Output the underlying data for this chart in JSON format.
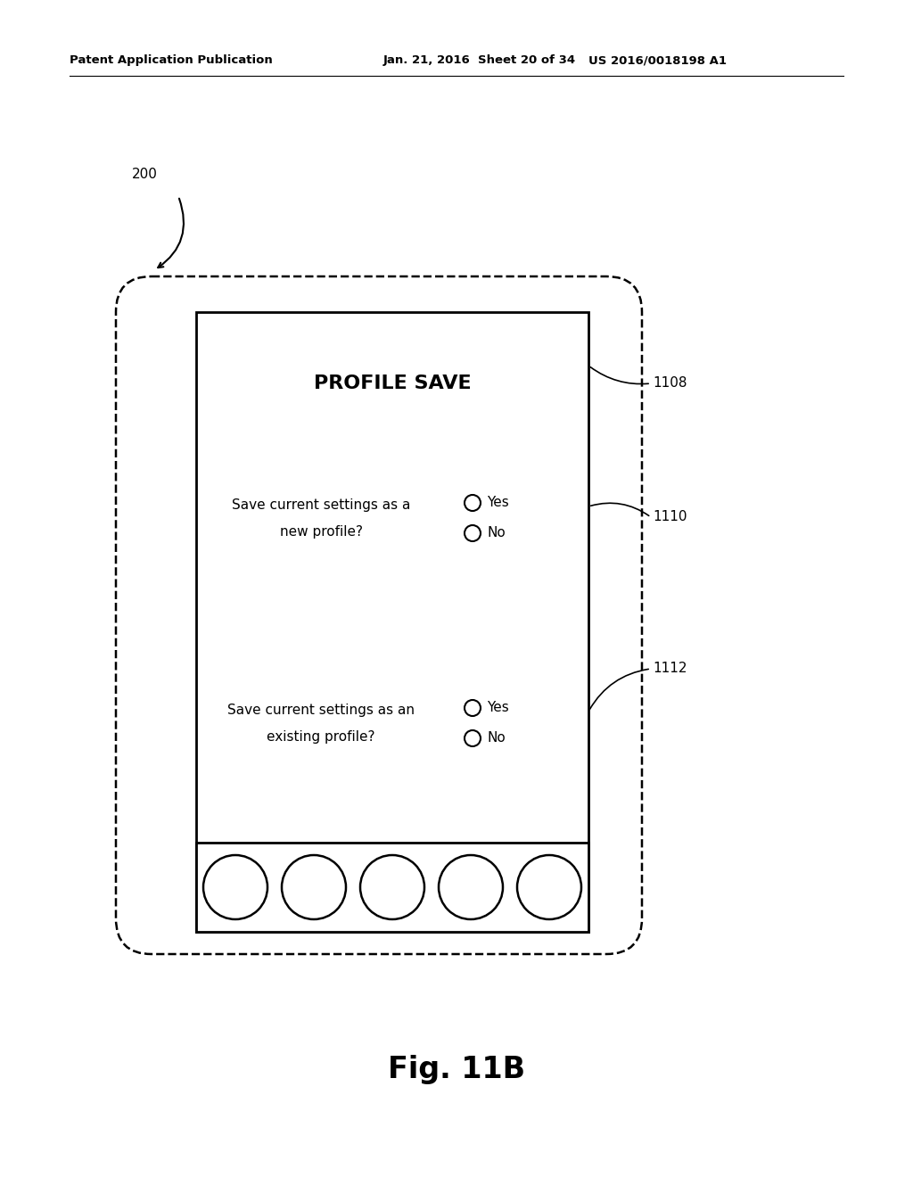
{
  "bg_color": "#ffffff",
  "header_left": "Patent Application Publication",
  "header_mid": "Jan. 21, 2016  Sheet 20 of 34",
  "header_right": "US 2016/0018198 A1",
  "fig_label": "Fig. 11B",
  "label_200": "200",
  "label_1108": "1108",
  "label_1110": "1110",
  "label_1112": "1112",
  "title_text": "PROFILE SAVE",
  "q1_line1": "Save current settings as a",
  "q1_line2": "new profile?",
  "q2_line1": "Save current settings as an",
  "q2_line2": "existing profile?",
  "yes_text": "Yes",
  "no_text": "No"
}
